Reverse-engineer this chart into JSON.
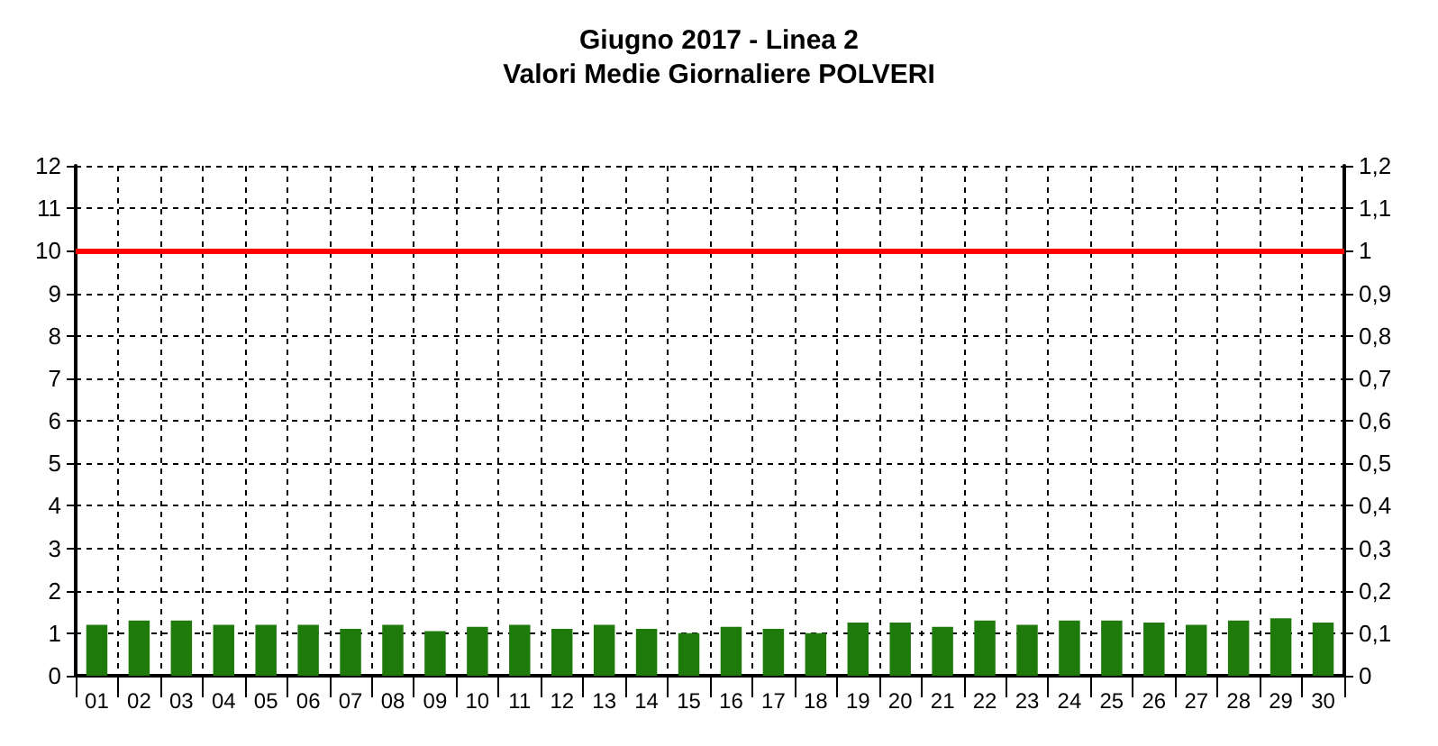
{
  "chart_data": {
    "type": "bar",
    "title": "Giugno 2017 - Linea 2",
    "subtitle": "Valori Medie Giornaliere POLVERI",
    "categories": [
      "01",
      "02",
      "03",
      "04",
      "05",
      "06",
      "07",
      "08",
      "09",
      "10",
      "11",
      "12",
      "13",
      "14",
      "15",
      "16",
      "17",
      "18",
      "19",
      "20",
      "21",
      "22",
      "23",
      "24",
      "25",
      "26",
      "27",
      "28",
      "29",
      "30"
    ],
    "series": [
      {
        "color": "#1f7a0c",
        "values": [
          1.2,
          1.3,
          1.3,
          1.2,
          1.2,
          1.2,
          1.1,
          1.2,
          1.05,
          1.15,
          1.2,
          1.1,
          1.2,
          1.1,
          1.0,
          1.15,
          1.1,
          1.0,
          1.25,
          1.25,
          1.15,
          1.3,
          1.2,
          1.3,
          1.3,
          1.25,
          1.2,
          1.3,
          1.35,
          1.25
        ]
      }
    ],
    "ylim": [
      0,
      12
    ],
    "yticks": [
      0,
      1,
      2,
      3,
      4,
      5,
      6,
      7,
      8,
      9,
      10,
      11,
      12
    ],
    "y2lim": [
      0,
      1.2
    ],
    "y2ticks": [
      0,
      {
        "value": 0.1,
        "label": "0,1"
      },
      {
        "value": 0.2,
        "label": "0,2"
      },
      {
        "value": 0.3,
        "label": "0,3"
      },
      {
        "value": 0.4,
        "label": "0,4"
      },
      {
        "value": 0.5,
        "label": "0,5"
      },
      {
        "value": 0.6,
        "label": "0,6"
      },
      {
        "value": 0.7,
        "label": "0,7"
      },
      {
        "value": 0.8,
        "label": "0,8"
      },
      {
        "value": 0.9,
        "label": "0,9"
      },
      1,
      {
        "value": 1.1,
        "label": "1,1"
      },
      {
        "value": 1.2,
        "label": "1,2"
      }
    ],
    "ref_lines": [
      {
        "axis": "y",
        "value": 10,
        "color": "#ff0000",
        "line_style": "solid"
      }
    ],
    "grid": true
  }
}
